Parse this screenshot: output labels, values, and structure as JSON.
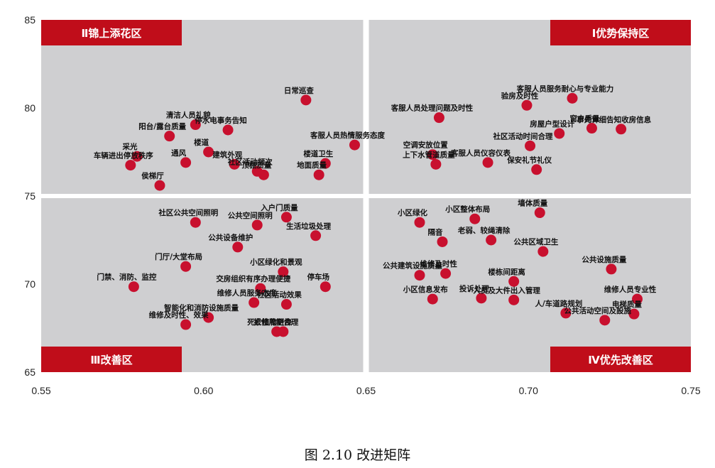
{
  "chart_data": {
    "type": "scatter",
    "title": "",
    "xlabel": "",
    "ylabel": "",
    "xlim": [
      0.55,
      0.75
    ],
    "ylim": [
      65,
      85
    ],
    "x_ticks": [
      "0.55",
      "0.60",
      "0.65",
      "0.70",
      "0.75"
    ],
    "y_ticks": [
      "85",
      "80",
      "75",
      "70",
      "65"
    ],
    "x_divider": 0.65,
    "y_divider": 75,
    "quadrants": [
      {
        "id": "q2",
        "label": "Ⅱ锦上添花区"
      },
      {
        "id": "q1",
        "label": "Ⅰ优势保持区"
      },
      {
        "id": "q3",
        "label": "Ⅲ改善区"
      },
      {
        "id": "q4",
        "label": "Ⅳ优先改善区"
      }
    ],
    "points": [
      {
        "label": "日常巡查",
        "x": 0.6315,
        "y": 80.45
      },
      {
        "label": "清洁人员礼貌",
        "x": 0.5975,
        "y": 79.05
      },
      {
        "label": "停水电事务告知",
        "x": 0.6075,
        "y": 78.75
      },
      {
        "label": "阳台/露台质量",
        "x": 0.5895,
        "y": 78.4
      },
      {
        "label": "客服人员热情服务态度",
        "x": 0.6465,
        "y": 77.9
      },
      {
        "label": "楼道",
        "x": 0.6015,
        "y": 77.5
      },
      {
        "label": "采光",
        "x": 0.5795,
        "y": 77.25
      },
      {
        "label": "通风",
        "x": 0.5945,
        "y": 76.9
      },
      {
        "label": "建筑外观",
        "x": 0.6095,
        "y": 76.8
      },
      {
        "label": "楼道卫生",
        "x": 0.6375,
        "y": 76.85
      },
      {
        "label": "车辆进出停放秩序",
        "x": 0.5775,
        "y": 76.75
      },
      {
        "label": "社区活动频次",
        "x": 0.6165,
        "y": 76.4
      },
      {
        "label": "顶棚质量",
        "x": 0.6185,
        "y": 76.2
      },
      {
        "label": "地面质量",
        "x": 0.6355,
        "y": 76.2
      },
      {
        "label": "侯梯厅",
        "x": 0.5865,
        "y": 75.6
      },
      {
        "label": "客服人员服务耐心与专业能力",
        "x": 0.7135,
        "y": 80.55
      },
      {
        "label": "验房及时性",
        "x": 0.6995,
        "y": 80.15
      },
      {
        "label": "客服人员处理问题及时性",
        "x": 0.6725,
        "y": 79.45
      },
      {
        "label": "窗户质量",
        "x": 0.7195,
        "y": 78.85
      },
      {
        "label": "事先详细告知收房信息",
        "x": 0.7285,
        "y": 78.8
      },
      {
        "label": "房屋户型设计",
        "x": 0.7095,
        "y": 78.55
      },
      {
        "label": "社区活动时间合理",
        "x": 0.7005,
        "y": 77.85
      },
      {
        "label": "空调安放位置",
        "x": 0.6705,
        "y": 77.35
      },
      {
        "label": "客服人员仪容仪表",
        "x": 0.6875,
        "y": 76.9
      },
      {
        "label": "上下水管道质量",
        "x": 0.6715,
        "y": 76.8
      },
      {
        "label": "保安礼节礼仪",
        "x": 0.7025,
        "y": 76.5
      },
      {
        "label": "入户门质量",
        "x": 0.6255,
        "y": 73.8
      },
      {
        "label": "社区公共空间照明",
        "x": 0.5975,
        "y": 73.5
      },
      {
        "label": "公共空间照明",
        "x": 0.6165,
        "y": 73.35
      },
      {
        "label": "生活垃圾处理",
        "x": 0.6345,
        "y": 72.75
      },
      {
        "label": "公共设备维护",
        "x": 0.6105,
        "y": 72.1
      },
      {
        "label": "门厅/大堂布局",
        "x": 0.5945,
        "y": 71.0
      },
      {
        "label": "小区绿化和景观",
        "x": 0.6245,
        "y": 70.7
      },
      {
        "label": "门禁、消防、监控",
        "x": 0.5785,
        "y": 69.85
      },
      {
        "label": "交房组织有序办理便捷",
        "x": 0.6175,
        "y": 69.75
      },
      {
        "label": "停车场",
        "x": 0.6375,
        "y": 69.85
      },
      {
        "label": "维修人员服务态度",
        "x": 0.6155,
        "y": 68.95
      },
      {
        "label": "社区活动效果",
        "x": 0.6255,
        "y": 68.85
      },
      {
        "label": "智能化和消防设施质量",
        "x": 0.6015,
        "y": 68.1
      },
      {
        "label": "维修及时性、效果",
        "x": 0.5945,
        "y": 67.7
      },
      {
        "label": "报修周期合理",
        "x": 0.6245,
        "y": 67.3
      },
      {
        "label": "死亡植物更换",
        "x": 0.6225,
        "y": 67.3
      },
      {
        "label": "墙体质量",
        "x": 0.7035,
        "y": 74.05
      },
      {
        "label": "小区整体布局",
        "x": 0.6835,
        "y": 73.7
      },
      {
        "label": "小区绿化",
        "x": 0.6665,
        "y": 73.5
      },
      {
        "label": "老弱、较绳清除",
        "x": 0.6885,
        "y": 72.5
      },
      {
        "label": "隔音",
        "x": 0.6735,
        "y": 72.4
      },
      {
        "label": "公共区域卫生",
        "x": 0.7045,
        "y": 71.85
      },
      {
        "label": "公共建筑设施质量",
        "x": 0.6665,
        "y": 70.5
      },
      {
        "label": "维修及时性",
        "x": 0.6745,
        "y": 70.6
      },
      {
        "label": "楼栋间距离",
        "x": 0.6955,
        "y": 70.15
      },
      {
        "label": "公共设施质量",
        "x": 0.7255,
        "y": 70.85
      },
      {
        "label": "维修人员专业性",
        "x": 0.7335,
        "y": 69.15
      },
      {
        "label": "小区信息发布",
        "x": 0.6705,
        "y": 69.15
      },
      {
        "label": "投诉处理",
        "x": 0.6855,
        "y": 69.2
      },
      {
        "label": "人员及大件出入管理",
        "x": 0.6955,
        "y": 69.1
      },
      {
        "label": "电梯质量",
        "x": 0.7325,
        "y": 68.3
      },
      {
        "label": "人/车道路规划",
        "x": 0.7115,
        "y": 68.35
      },
      {
        "label": "公共活动空间及設施",
        "x": 0.7235,
        "y": 67.95
      }
    ]
  },
  "caption": "图 2.10  改进矩阵",
  "colors": {
    "plot_bg": "#cfcfd1",
    "marker": "#c8102e",
    "quad_label_bg": "#c00d1a",
    "divider": "#ffffff"
  }
}
